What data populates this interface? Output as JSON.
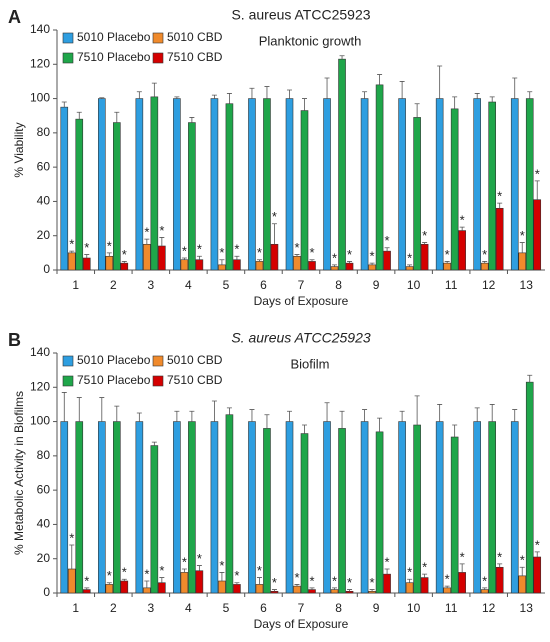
{
  "chart_data": [
    {
      "type": "bar",
      "panel_label": "A",
      "title": "S. aureus ATCC25923",
      "annotation": "Planktonic growth",
      "xlabel": "Days of Exposure",
      "ylabel": "% Viability",
      "categories": [
        "1",
        "2",
        "3",
        "4",
        "5",
        "6",
        "7",
        "8",
        "9",
        "10",
        "11",
        "12",
        "13"
      ],
      "ylim": [
        0,
        140
      ],
      "yticks": [
        0,
        20,
        40,
        60,
        80,
        100,
        120,
        140
      ],
      "legend": "upper left",
      "significance_marker": "*",
      "series": [
        {
          "name": "5010 Placebo",
          "color": "#2e9ee0",
          "values": [
            95,
            100,
            100,
            100,
            100,
            100,
            100,
            100,
            100,
            100,
            100,
            100,
            100
          ],
          "errors": [
            3,
            0.5,
            4,
            1,
            2,
            6,
            5,
            12,
            4,
            10,
            19,
            3,
            12
          ]
        },
        {
          "name": "5010 CBD",
          "color": "#f08a2c",
          "values": [
            10,
            8,
            15,
            6,
            3,
            5,
            8,
            2,
            3,
            2,
            4,
            4,
            10
          ],
          "errors": [
            1,
            2,
            3,
            1,
            3,
            1,
            1,
            1,
            1,
            1,
            1,
            1,
            6
          ],
          "significant": true
        },
        {
          "name": "7510 Placebo",
          "color": "#1fa64a",
          "values": [
            88,
            86,
            101,
            86,
            97,
            100,
            93,
            123,
            108,
            89,
            94,
            98,
            100
          ],
          "errors": [
            4,
            6,
            8,
            3,
            6,
            7,
            7,
            2,
            6,
            8,
            7,
            3,
            4
          ]
        },
        {
          "name": "7510 CBD",
          "color": "#d40000",
          "values": [
            7,
            4,
            14,
            6,
            6,
            15,
            5,
            4,
            11,
            15,
            23,
            36,
            41
          ],
          "errors": [
            2,
            1,
            5,
            2,
            2,
            12,
            1,
            1,
            2,
            1,
            2,
            3,
            11
          ],
          "significant": true
        }
      ]
    },
    {
      "type": "bar",
      "panel_label": "B",
      "title": "S. aureus ATCC25923",
      "annotation": "Biofilm",
      "xlabel": "Days of Exposure",
      "ylabel": "% Metabolic Activity in Biofilms",
      "categories": [
        "1",
        "2",
        "3",
        "4",
        "5",
        "6",
        "7",
        "8",
        "9",
        "10",
        "11",
        "12",
        "13"
      ],
      "ylim": [
        0,
        140
      ],
      "yticks": [
        0,
        20,
        40,
        60,
        80,
        100,
        120,
        140
      ],
      "legend": "upper left",
      "significance_marker": "*",
      "series": [
        {
          "name": "5010 Placebo",
          "color": "#2e9ee0",
          "values": [
            100,
            100,
            100,
            100,
            100,
            100,
            100,
            100,
            100,
            100,
            100,
            100,
            100
          ],
          "errors": [
            17,
            14,
            5,
            6,
            12,
            7,
            6,
            11,
            7,
            6,
            10,
            8,
            7
          ]
        },
        {
          "name": "5010 CBD",
          "color": "#f08a2c",
          "values": [
            14,
            5,
            3,
            12,
            7,
            5,
            4,
            2,
            1,
            6,
            3,
            2,
            10
          ],
          "errors": [
            14,
            1,
            4,
            2,
            5,
            4,
            1,
            1,
            1,
            2,
            1,
            1,
            5
          ],
          "significant": true
        },
        {
          "name": "7510 Placebo",
          "color": "#1fa64a",
          "values": [
            100,
            100,
            86,
            100,
            104,
            96,
            93,
            96,
            94,
            98,
            91,
            100,
            123
          ],
          "errors": [
            14,
            9,
            2,
            6,
            4,
            8,
            5,
            10,
            8,
            17,
            7,
            10,
            4
          ]
        },
        {
          "name": "7510 CBD",
          "color": "#d40000",
          "values": [
            2,
            7,
            6,
            13,
            5,
            1,
            2,
            1,
            11,
            9,
            12,
            15,
            21
          ],
          "errors": [
            1,
            1,
            3,
            3,
            1,
            1,
            1,
            1,
            3,
            2,
            5,
            2,
            3
          ],
          "significant": true
        }
      ]
    }
  ]
}
